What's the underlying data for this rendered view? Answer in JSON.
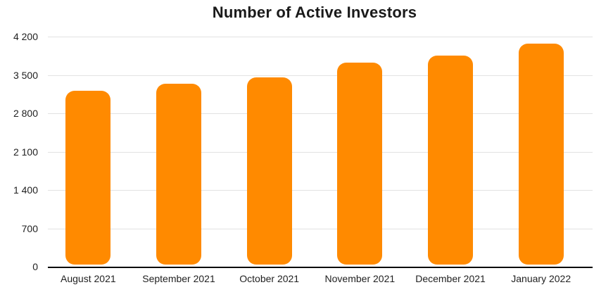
{
  "chart_data": {
    "type": "bar",
    "title": "Number of Active Investors",
    "xlabel": "",
    "ylabel": "",
    "categories": [
      "August 2021",
      "September 2021",
      "October 2021",
      "November 2021",
      "December 2021",
      "January 2022"
    ],
    "values": [
      3210,
      3340,
      3450,
      3720,
      3850,
      4070
    ],
    "ylim": [
      0,
      4200
    ],
    "y_ticks": [
      {
        "value": 0,
        "label": "0"
      },
      {
        "value": 700,
        "label": "700"
      },
      {
        "value": 1400,
        "label": "1 400"
      },
      {
        "value": 2100,
        "label": "2 100"
      },
      {
        "value": 2800,
        "label": "2 800"
      },
      {
        "value": 3500,
        "label": "3 500"
      },
      {
        "value": 4200,
        "label": "4 200"
      }
    ],
    "grid": true,
    "legend": false,
    "colors": {
      "bar": "#FF8A00",
      "gridline": "#e2e2e2",
      "axis_line": "#0a0a0a",
      "title_text": "#1a1a1a",
      "tick_text": "#1f1f1f"
    }
  }
}
